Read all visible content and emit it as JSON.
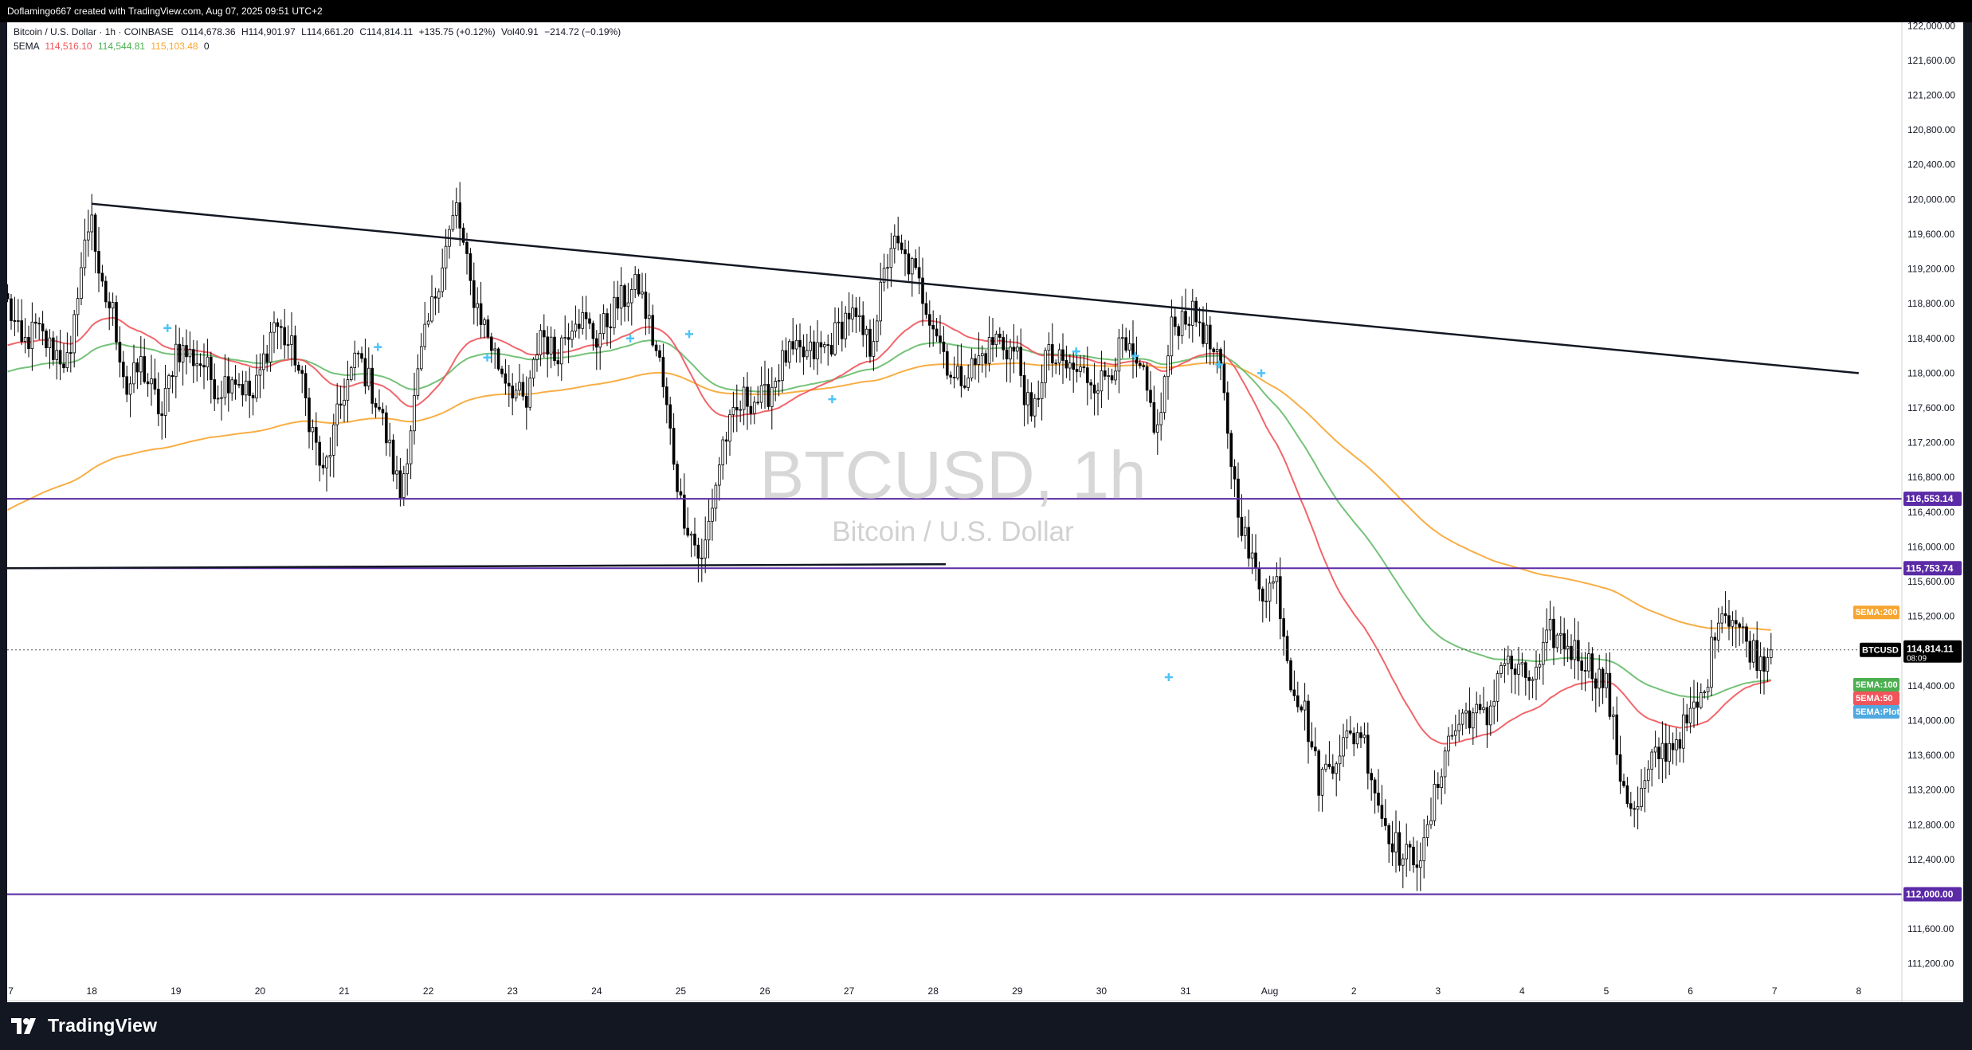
{
  "header": {
    "attribution": "Doflamingo667 created with TradingView.com, Aug 07, 2025 09:51 UTC+2"
  },
  "legend": {
    "symbol_line": "Bitcoin / U.S. Dollar · 1h · COINBASE",
    "open": "O114,678.36",
    "high": "H114,901.97",
    "low": "L114,661.20",
    "close": "C114,814.11",
    "change": "+135.75 (+0.12%)",
    "volume": "Vol40.91",
    "volume_change": "−214.72 (−0.19%)",
    "ema_label": "5EMA",
    "ema_values": [
      "114,516.10",
      "114,544.81",
      "115,103.48"
    ],
    "ema_trailing": "0"
  },
  "watermark": {
    "symbol": "BTCUSD, 1h",
    "name": "Bitcoin / U.S. Dollar"
  },
  "price_axis_ticks": [
    "122,000.00",
    "121,600.00",
    "121,200.00",
    "120,800.00",
    "120,400.00",
    "120,000.00",
    "119,600.00",
    "119,200.00",
    "118,800.00",
    "118,400.00",
    "118,000.00",
    "117,600.00",
    "117,200.00",
    "116,800.00",
    "116,400.00",
    "116,000.00",
    "115,600.00",
    "115,200.00",
    "114,400.00",
    "114,000.00",
    "113,600.00",
    "113,200.00",
    "112,800.00",
    "112,400.00",
    "111,600.00",
    "111,200.00"
  ],
  "price_tags": {
    "resistance_1": "116,553.14",
    "resistance_2": "115,753.74",
    "support": "112,000.00",
    "last_symbol": "BTCUSD",
    "last_price": "114,814.11",
    "countdown": "08:09",
    "ema200": "5EMA:200",
    "ema100": "5EMA:100",
    "ema50": "5EMA:50",
    "ema_plot": "5EMA:Plot"
  },
  "time_axis_labels": [
    "7",
    "18",
    "19",
    "20",
    "21",
    "22",
    "23",
    "24",
    "25",
    "26",
    "27",
    "28",
    "29",
    "30",
    "31",
    "Aug",
    "2",
    "3",
    "4",
    "5",
    "6",
    "7",
    "8"
  ],
  "footer": {
    "brand": "TradingView"
  },
  "colors": {
    "background": "#ffffff",
    "frame": "#131722",
    "candle": "#000000",
    "ema50": "#f0555b",
    "ema100": "#66bb6a",
    "ema200": "#f7a531",
    "level_line": "#5b2aa6",
    "plot_marker": "#4fc3f7"
  },
  "chart_data": {
    "type": "candlestick",
    "title": "Bitcoin / U.S. Dollar · 1h · COINBASE",
    "timeframe": "1h",
    "x_range": [
      "Jul 17",
      "Aug 8"
    ],
    "y_range": [
      111000,
      122100
    ],
    "ylabel": "USD",
    "approx_hourly_closes": [
      {
        "date": "Jul 17",
        "close": 118500
      },
      {
        "date": "Jul 18",
        "close": 119900
      },
      {
        "date": "Jul 18 12h",
        "close": 118000
      },
      {
        "date": "Jul 19",
        "close": 118200
      },
      {
        "date": "Jul 20",
        "close": 117900
      },
      {
        "date": "Jul 21",
        "close": 117400
      },
      {
        "date": "Jul 22",
        "close": 117100
      },
      {
        "date": "Jul 23",
        "close": 119800
      },
      {
        "date": "Jul 24",
        "close": 118300
      },
      {
        "date": "Jul 25",
        "close": 118500
      },
      {
        "date": "Jul 25 12h",
        "close": 115500
      },
      {
        "date": "Jul 26",
        "close": 117500
      },
      {
        "date": "Jul 27",
        "close": 118000
      },
      {
        "date": "Jul 28",
        "close": 119400
      },
      {
        "date": "Jul 29",
        "close": 118300
      },
      {
        "date": "Jul 30",
        "close": 117600
      },
      {
        "date": "Jul 31",
        "close": 118600
      },
      {
        "date": "Aug 1",
        "close": 116800
      },
      {
        "date": "Aug 2",
        "close": 113800
      },
      {
        "date": "Aug 3",
        "close": 112200
      },
      {
        "date": "Aug 4",
        "close": 114700
      },
      {
        "date": "Aug 5",
        "close": 114400
      },
      {
        "date": "Aug 6",
        "close": 113900
      },
      {
        "date": "Aug 7",
        "close": 114814.11
      }
    ],
    "series": [
      {
        "name": "5EMA:50",
        "color": "#f0555b",
        "last": 114516.1
      },
      {
        "name": "5EMA:100",
        "color": "#66bb6a",
        "last": 114544.81
      },
      {
        "name": "5EMA:200",
        "color": "#f7a531",
        "last": 115103.48
      }
    ],
    "horizontal_levels": [
      116553.14,
      115753.74,
      112000.0
    ],
    "trendline": {
      "from": {
        "date": "Jul 18",
        "price": 119950
      },
      "to": {
        "date": "Aug 8",
        "price": 118000
      }
    },
    "lower_trendline": {
      "from": {
        "date": "Jul 17",
        "price": 115753.74
      },
      "to": {
        "date": "Jul 28",
        "price": 115800
      }
    },
    "last_price": 114814.11,
    "grid": false,
    "legend": "top-left"
  }
}
